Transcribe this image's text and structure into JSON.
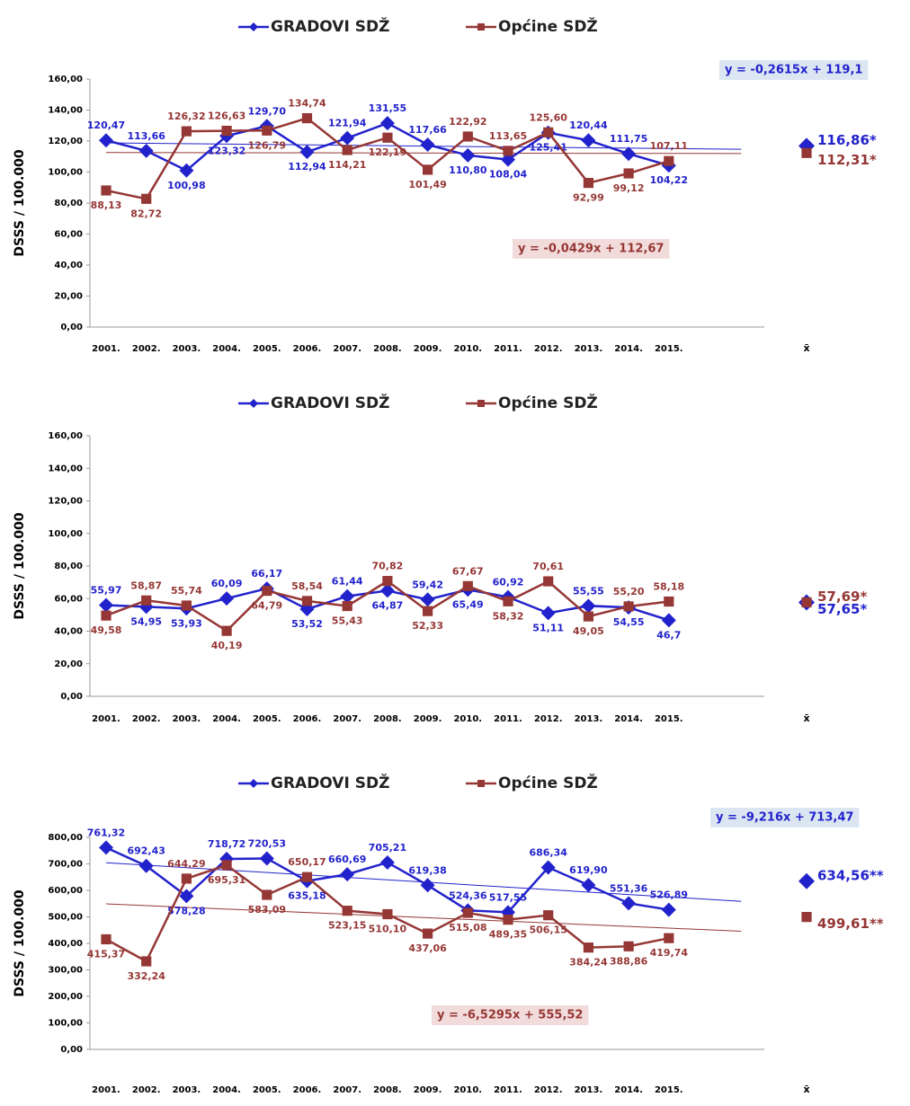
{
  "chart_data": [
    {
      "type": "line",
      "ylabel": "DSSS / 100.000",
      "categories": [
        "2001.",
        "2002.",
        "2003.",
        "2004.",
        "2005.",
        "2006.",
        "2007.",
        "2008.",
        "2009.",
        "2010.",
        "2011.",
        "2012.",
        "2013.",
        "2014.",
        "2015."
      ],
      "mean_category": "x̄",
      "ylim": [
        0,
        160
      ],
      "yticks": [
        {
          "value": 0,
          "label": "0,00"
        },
        {
          "value": 20,
          "label": "20,00"
        },
        {
          "value": 40,
          "label": "40,00"
        },
        {
          "value": 60,
          "label": "60,00"
        },
        {
          "value": 80,
          "label": "80,00"
        },
        {
          "value": 100,
          "label": "100,00"
        },
        {
          "value": 120,
          "label": "120,00"
        },
        {
          "value": 140,
          "label": "140,00"
        },
        {
          "value": 160,
          "label": "160,00"
        }
      ],
      "series": [
        {
          "name": "GRADOVI SDŽ",
          "color": "#2222cc",
          "marker": "diamond",
          "values": [
            120.47,
            113.66,
            100.98,
            123.32,
            129.7,
            112.94,
            121.94,
            131.55,
            117.66,
            110.8,
            108.04,
            125.41,
            120.44,
            111.75,
            104.22
          ],
          "value_labels": [
            "120,47",
            "113,66",
            "100,98",
            "123,32",
            "129,70",
            "112,94",
            "121,94",
            "131,55",
            "117,66",
            "110,80",
            "108,04",
            "125,41",
            "120,44",
            "111,75",
            "104,22"
          ],
          "mean": 116.86,
          "mean_label": "116,86*"
        },
        {
          "name": "Općine SDŽ",
          "color": "#953735",
          "marker": "square",
          "values": [
            88.13,
            82.72,
            126.32,
            126.63,
            126.79,
            134.74,
            114.21,
            122.19,
            101.49,
            122.92,
            113.65,
            125.6,
            92.99,
            99.12,
            107.11
          ],
          "value_labels": [
            "88,13",
            "82,72",
            "126,32",
            "126,63",
            "126,79",
            "134,74",
            "114,21",
            "122,19",
            "101,49",
            "122,92",
            "113,65",
            "125,60",
            "92,99",
            "99,12",
            "107,11"
          ],
          "mean": 112.31,
          "mean_label": "112,31*"
        }
      ],
      "trendlines": [
        {
          "label": "y = -0,2615x + 119,1",
          "slope": -0.2615,
          "intercept": 119.1,
          "color": "#2222cc"
        },
        {
          "label": "y = -0,0429x + 112,67",
          "slope": -0.0429,
          "intercept": 112.67,
          "color": "#953735"
        }
      ]
    },
    {
      "type": "line",
      "ylabel": "DSSS / 100.000",
      "categories": [
        "2001.",
        "2002.",
        "2003.",
        "2004.",
        "2005.",
        "2006.",
        "2007.",
        "2008.",
        "2009.",
        "2010.",
        "2011.",
        "2012.",
        "2013.",
        "2014.",
        "2015."
      ],
      "mean_category": "x̄",
      "ylim": [
        0,
        160
      ],
      "yticks": [
        {
          "value": 0,
          "label": "0,00"
        },
        {
          "value": 20,
          "label": "20,00"
        },
        {
          "value": 40,
          "label": "40,00"
        },
        {
          "value": 60,
          "label": "60,00"
        },
        {
          "value": 80,
          "label": "80,00"
        },
        {
          "value": 100,
          "label": "100,00"
        },
        {
          "value": 120,
          "label": "120,00"
        },
        {
          "value": 140,
          "label": "140,00"
        },
        {
          "value": 160,
          "label": "160,00"
        }
      ],
      "series": [
        {
          "name": "GRADOVI SDŽ",
          "color": "#2222cc",
          "marker": "diamond",
          "values": [
            55.97,
            54.95,
            53.93,
            60.09,
            66.17,
            53.52,
            61.44,
            64.87,
            59.42,
            65.49,
            60.92,
            51.11,
            55.55,
            54.55,
            46.7
          ],
          "value_labels": [
            "55,97",
            "54,95",
            "53,93",
            "60,09",
            "66,17",
            "53,52",
            "61,44",
            "64,87",
            "59,42",
            "65,49",
            "60,92",
            "51,11",
            "55,55",
            "54,55",
            "46,7"
          ],
          "mean": 57.65,
          "mean_label": "57,65*"
        },
        {
          "name": "Općine SDŽ",
          "color": "#953735",
          "marker": "square",
          "values": [
            49.58,
            58.87,
            55.74,
            40.19,
            64.79,
            58.54,
            55.43,
            70.82,
            52.33,
            67.67,
            58.32,
            70.61,
            49.05,
            55.2,
            58.18
          ],
          "value_labels": [
            "49,58",
            "58,87",
            "55,74",
            "40,19",
            "64,79",
            "58,54",
            "55,43",
            "70,82",
            "52,33",
            "67,67",
            "58,32",
            "70,61",
            "49,05",
            "55,20",
            "58,18"
          ],
          "mean": 57.69,
          "mean_label": "57,69*"
        }
      ]
    },
    {
      "type": "line",
      "ylabel": "DSSS / 100.000",
      "categories": [
        "2001.",
        "2002.",
        "2003.",
        "2004.",
        "2005.",
        "2006.",
        "2007.",
        "2008.",
        "2009.",
        "2010.",
        "2011.",
        "2012.",
        "2013.",
        "2014.",
        "2015."
      ],
      "mean_category": "x̄",
      "ylim": [
        0,
        800
      ],
      "yticks": [
        {
          "value": 0,
          "label": "0,00"
        },
        {
          "value": 100,
          "label": "100,00"
        },
        {
          "value": 200,
          "label": "200,00"
        },
        {
          "value": 300,
          "label": "300,00"
        },
        {
          "value": 400,
          "label": "400,00"
        },
        {
          "value": 500,
          "label": "500,00"
        },
        {
          "value": 600,
          "label": "600,00"
        },
        {
          "value": 700,
          "label": "700,00"
        },
        {
          "value": 800,
          "label": "800,00"
        }
      ],
      "series": [
        {
          "name": "GRADOVI SDŽ",
          "color": "#2222cc",
          "marker": "diamond",
          "values": [
            761.32,
            692.43,
            578.28,
            718.72,
            720.53,
            635.18,
            660.69,
            705.21,
            619.38,
            524.36,
            517.55,
            686.34,
            619.9,
            551.36,
            526.89
          ],
          "value_labels": [
            "761,32",
            "692,43",
            "578,28",
            "718,72",
            "720,53",
            "635,18",
            "660,69",
            "705,21",
            "619,38",
            "524,36",
            "517,55",
            "686,34",
            "619,90",
            "551,36",
            "526,89"
          ],
          "mean": 634.56,
          "mean_label": "634,56**"
        },
        {
          "name": "Općine SDŽ",
          "color": "#953735",
          "marker": "square",
          "values": [
            415.37,
            332.24,
            644.29,
            695.31,
            583.09,
            650.17,
            523.15,
            510.1,
            437.06,
            515.08,
            489.35,
            506.15,
            384.24,
            388.86,
            419.74
          ],
          "value_labels": [
            "415,37",
            "332,24",
            "644,29",
            "695,31",
            "583,09",
            "650,17",
            "523,15",
            "510,10",
            "437,06",
            "515,08",
            "489,35",
            "506,15",
            "384,24",
            "388,86",
            "419,74"
          ],
          "mean": 499.61,
          "mean_label": "499,61**"
        }
      ],
      "trendlines": [
        {
          "label": "y = -9,216x + 713,47",
          "slope": -9.216,
          "intercept": 713.47,
          "color": "#2222cc"
        },
        {
          "label": "y = -6,5295x + 555,52",
          "slope": -6.5295,
          "intercept": 555.52,
          "color": "#953735"
        }
      ]
    }
  ]
}
